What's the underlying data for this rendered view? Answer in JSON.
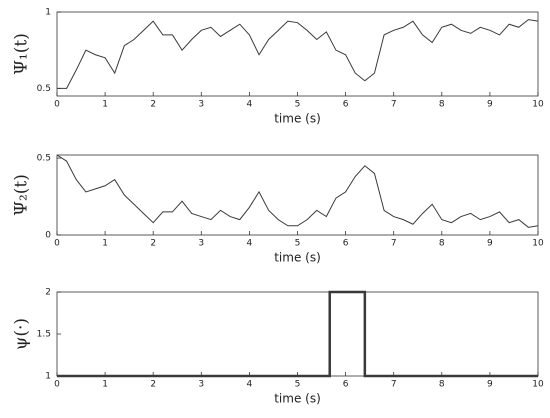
{
  "chart_data": [
    {
      "type": "line",
      "ylabel": "Ψ₁(t)",
      "xlabel": "time (s)",
      "color": "#3a3a3a",
      "line_width": 1,
      "x": [
        0,
        0.2,
        0.4,
        0.6,
        0.8,
        1,
        1.2,
        1.4,
        1.6,
        1.8,
        2,
        2.2,
        2.4,
        2.6,
        2.8,
        3,
        3.2,
        3.4,
        3.6,
        3.8,
        4,
        4.2,
        4.4,
        4.6,
        4.8,
        5,
        5.2,
        5.4,
        5.6,
        5.8,
        6,
        6.2,
        6.4,
        6.6,
        6.8,
        7,
        7.2,
        7.4,
        7.6,
        7.8,
        8,
        8.2,
        8.4,
        8.6,
        8.8,
        9,
        9.2,
        9.4,
        9.6,
        9.8,
        10
      ],
      "values": [
        0.5,
        0.5,
        0.62,
        0.75,
        0.72,
        0.7,
        0.6,
        0.78,
        0.82,
        0.88,
        0.94,
        0.85,
        0.85,
        0.75,
        0.82,
        0.88,
        0.9,
        0.84,
        0.88,
        0.92,
        0.85,
        0.72,
        0.82,
        0.88,
        0.94,
        0.93,
        0.88,
        0.82,
        0.87,
        0.75,
        0.72,
        0.6,
        0.55,
        0.6,
        0.85,
        0.88,
        0.9,
        0.94,
        0.85,
        0.8,
        0.9,
        0.92,
        0.88,
        0.86,
        0.9,
        0.88,
        0.85,
        0.92,
        0.9,
        0.95,
        0.94
      ],
      "xlim": [
        0,
        10
      ],
      "xticks": [
        0,
        1,
        2,
        3,
        4,
        5,
        6,
        7,
        8,
        9,
        10
      ],
      "ylim": [
        0.45,
        1
      ],
      "yticks": [
        0.5,
        1
      ]
    },
    {
      "type": "line",
      "ylabel": "Ψ₂(t)",
      "xlabel": "time (s)",
      "color": "#3a3a3a",
      "line_width": 1,
      "x": [
        0,
        0.2,
        0.4,
        0.6,
        0.8,
        1,
        1.2,
        1.4,
        1.6,
        1.8,
        2,
        2.2,
        2.4,
        2.6,
        2.8,
        3,
        3.2,
        3.4,
        3.6,
        3.8,
        4,
        4.2,
        4.4,
        4.6,
        4.8,
        5,
        5.2,
        5.4,
        5.6,
        5.8,
        6,
        6.2,
        6.4,
        6.6,
        6.8,
        7,
        7.2,
        7.4,
        7.6,
        7.8,
        8,
        8.2,
        8.4,
        8.6,
        8.8,
        9,
        9.2,
        9.4,
        9.6,
        9.8,
        10
      ],
      "values": [
        0.52,
        0.48,
        0.36,
        0.28,
        0.3,
        0.32,
        0.36,
        0.26,
        0.2,
        0.14,
        0.08,
        0.15,
        0.15,
        0.22,
        0.14,
        0.12,
        0.1,
        0.16,
        0.12,
        0.1,
        0.18,
        0.28,
        0.16,
        0.1,
        0.06,
        0.06,
        0.1,
        0.16,
        0.12,
        0.24,
        0.28,
        0.38,
        0.45,
        0.4,
        0.16,
        0.12,
        0.1,
        0.07,
        0.14,
        0.2,
        0.1,
        0.08,
        0.12,
        0.14,
        0.1,
        0.12,
        0.15,
        0.08,
        0.1,
        0.05,
        0.06
      ],
      "xlim": [
        0,
        10
      ],
      "xticks": [
        0,
        1,
        2,
        3,
        4,
        5,
        6,
        7,
        8,
        9,
        10
      ],
      "ylim": [
        0,
        0.52
      ],
      "yticks": [
        0,
        0.5
      ]
    },
    {
      "type": "line",
      "ylabel": "ψ(·)",
      "xlabel": "time (s)",
      "color": "#3a3a3a",
      "line_width": 2.5,
      "x": [
        0,
        5.67,
        5.67,
        6.4,
        6.4,
        10
      ],
      "values": [
        1,
        1,
        2,
        2,
        1,
        1
      ],
      "xlim": [
        0,
        10
      ],
      "xticks": [
        0,
        1,
        2,
        3,
        4,
        5,
        6,
        7,
        8,
        9,
        10
      ],
      "ylim": [
        1,
        2
      ],
      "yticks": [
        1,
        1.5,
        2
      ]
    }
  ]
}
